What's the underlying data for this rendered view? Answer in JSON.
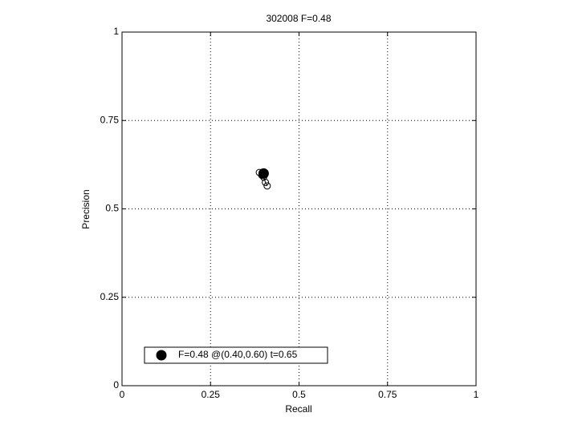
{
  "chart_data": {
    "type": "scatter",
    "title": "302008 F=0.48",
    "xlabel": "Recall",
    "ylabel": "Precision",
    "xlim": [
      0,
      1
    ],
    "ylim": [
      0,
      1
    ],
    "xticks": [
      0,
      0.25,
      0.5,
      0.75,
      1
    ],
    "yticks": [
      0,
      0.25,
      0.5,
      0.75,
      1
    ],
    "grid": true,
    "legend": "lower left",
    "series": [
      {
        "color": "#000000",
        "marker": "open",
        "x": [
          0.388,
          0.395,
          0.4,
          0.405,
          0.41
        ],
        "values": [
          0.603,
          0.595,
          0.59,
          0.575,
          0.565
        ]
      },
      {
        "name": "F=0.48 @(0.40,0.60) t=0.65",
        "color": "#000000",
        "marker": "filled",
        "x": [
          0.4
        ],
        "values": [
          0.6
        ]
      }
    ]
  }
}
